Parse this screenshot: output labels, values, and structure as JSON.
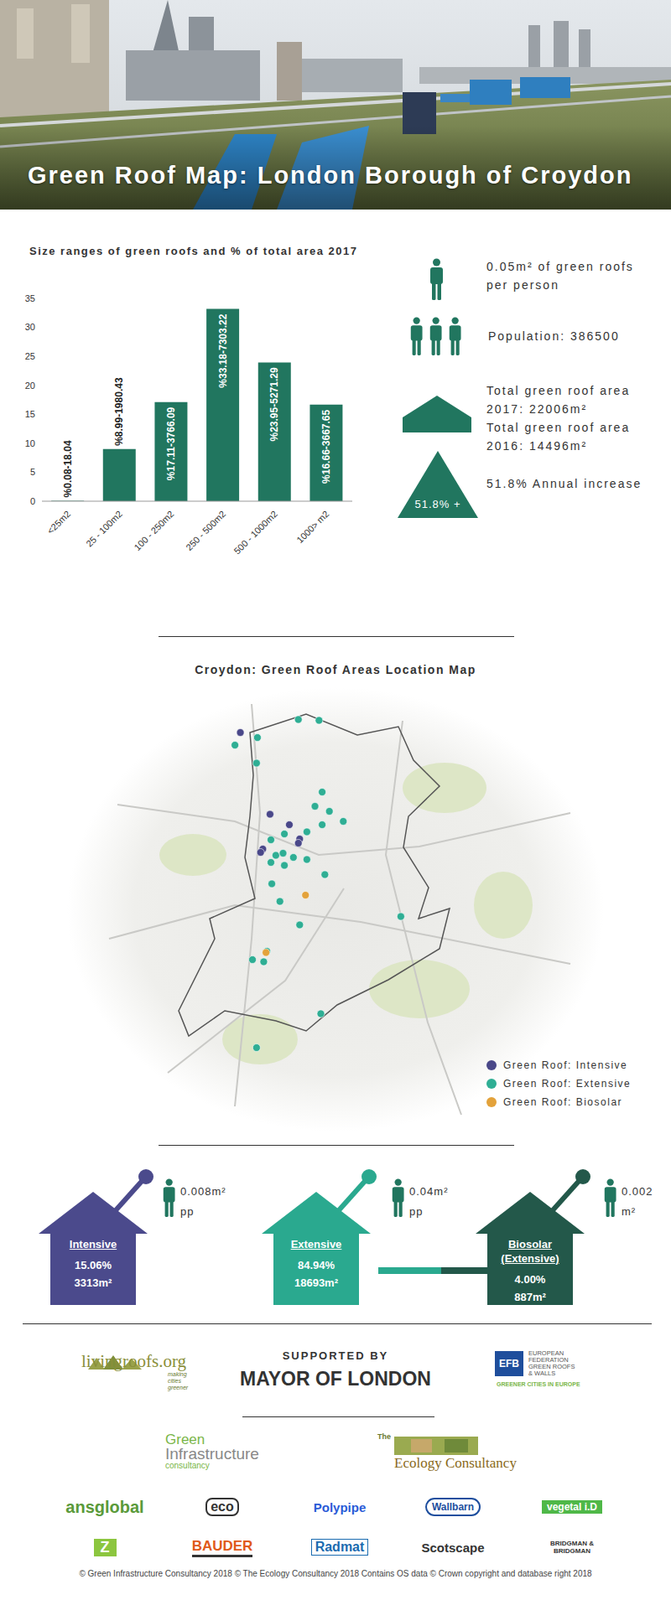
{
  "header": {
    "title": "Green Roof Map: London Borough of Croydon"
  },
  "chart_data": [
    {
      "type": "bar",
      "title": "Size ranges of green roofs and % of total area 2017",
      "categories": [
        "<25m2",
        "25 - 100m2",
        "100 - 250m2",
        "250 - 500m2",
        "500 - 1000m2",
        "1000> m2"
      ],
      "values": [
        0.08,
        8.99,
        17.11,
        33.18,
        23.95,
        16.66
      ],
      "value_labels": [
        "%0.08-18.04",
        "%8.99-1980.43",
        "%17.11-3766.09",
        "%33.18-7303.22",
        "%23.95-5271.29",
        "%16.66-3667.65"
      ],
      "color": "#21765f",
      "ylim": [
        0,
        35
      ],
      "yticks": [
        0,
        5,
        10,
        15,
        20,
        25,
        30,
        35
      ],
      "grid": false,
      "data_labels": true
    },
    {
      "type": "scatter",
      "title": "Croydon: Green Roof Areas Location Map",
      "xlim": [
        0,
        100
      ],
      "ylim": [
        0,
        100
      ],
      "xticks": [
        0,
        100
      ],
      "yticks": [
        0,
        100
      ],
      "tick_labels": false,
      "legend": "lower right",
      "series": [
        {
          "name": "Green Roof: Intensive",
          "color": "#4a4889",
          "x": [
            30.7,
            37.3,
            41.6,
            43.9,
            35.7,
            35.2,
            43.6
          ],
          "y": [
            93.2,
            73.7,
            71.2,
            67.8,
            65.4,
            64.6,
            66.8
          ]
        },
        {
          "name": "Green Roof: Extensive",
          "color": "#2fae94",
          "x": [
            34.5,
            29.5,
            43.6,
            48.2,
            34.3,
            48.9,
            47.3,
            50.5,
            53.6,
            48.9,
            45.5,
            40.5,
            37.5,
            38.6,
            40.2,
            42.5,
            45.5,
            37.5,
            40.5,
            49.5,
            37.7,
            39.5,
            66.4,
            43.9,
            33.4,
            35.9,
            36.6,
            48.6,
            34.3
          ],
          "y": [
            92,
            90.2,
            96.3,
            96.1,
            85.9,
            79,
            75.6,
            74.4,
            72,
            71.2,
            69.5,
            69,
            67.6,
            63.9,
            64.4,
            63.4,
            62.9,
            62.2,
            61.5,
            59.3,
            57.1,
            52.9,
            49.3,
            47.3,
            39,
            38.5,
            41,
            26.1,
            18
          ]
        },
        {
          "name": "Green Roof: Biosolar",
          "color": "#e3a23b",
          "x": [
            45.2,
            36.4
          ],
          "y": [
            54.4,
            40.7
          ]
        }
      ]
    }
  ],
  "stats": {
    "per_person": [
      "0.05m² of green roofs",
      "per person"
    ],
    "population": "Population: 386500",
    "total_2017": [
      "Total green roof area",
      "2017: 22006m²"
    ],
    "total_2016": [
      "Total green roof area",
      "2016: 14496m²"
    ],
    "increase_badge": "51.8% +",
    "increase": "51.8% Annual increase"
  },
  "roof_types": [
    {
      "name": [
        "Intensive"
      ],
      "share": "15.06%",
      "area": "3313m²",
      "per_person": [
        "0.008m²",
        "pp"
      ],
      "color": "#4b4a8c"
    },
    {
      "name": [
        "Extensive"
      ],
      "share": "84.94%",
      "area": "18693m²",
      "per_person": [
        "0.04m²",
        "pp"
      ],
      "color": "#2aa98f"
    },
    {
      "name": [
        "Biosolar",
        "(Extensive)"
      ],
      "share": "4.00%",
      "area": "887m²",
      "per_person": [
        "0.002",
        "m²"
      ],
      "color": "#23584a"
    }
  ],
  "sponsors": {
    "livingroofs": {
      "name": "livingroofs.org",
      "tagline": [
        "making",
        "cities",
        "greener"
      ]
    },
    "supported_by": "SUPPORTED BY",
    "mayor": "MAYOR OF LONDON",
    "efb": {
      "abbr": "EFB",
      "name": [
        "EUROPEAN",
        "FEDERATION",
        "GREEN ROOFS",
        "& WALLS"
      ],
      "tagline": "GREENER CITIES IN EUROPE"
    },
    "consultancies": [
      [
        "Green",
        "Infrastructure",
        "consultancy"
      ],
      [
        "The",
        "Ecology Consultancy"
      ]
    ],
    "logos": [
      "ansglobal",
      "eco",
      "Polypipe",
      "Wallbarn",
      "vegetal i.D",
      "Z",
      "BAUDER",
      "Radmat",
      "Scotscape",
      "BRIDGMAN & BRIDGMAN"
    ]
  },
  "footer": "© Green Infrastructure Consultancy 2018 © The Ecology Consultancy 2018 Contains OS data © Crown copyright and database right 2018"
}
